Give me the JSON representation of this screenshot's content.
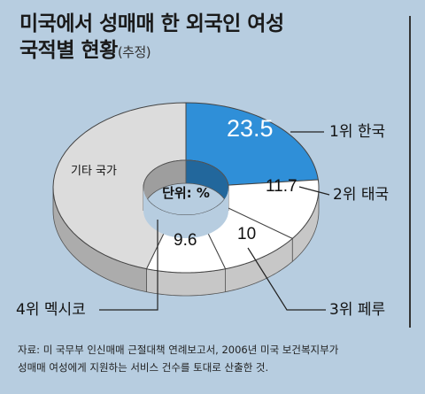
{
  "title": {
    "line1": "미국에서 성매매 한 외국인 여성",
    "line2": "국적별 현황",
    "line2_note": "(추정)"
  },
  "chart_data": {
    "type": "pie",
    "subtype": "donut-3d",
    "unit_label": "단위: %",
    "slices": [
      {
        "label": "1위 한국",
        "value": 23.5,
        "value_label": "23.5",
        "color": "#2f8fd8"
      },
      {
        "label": "2위 태국",
        "value": 11.7,
        "value_label": "11.7",
        "color": "#ffffff"
      },
      {
        "label": "3위 페루",
        "value": 10,
        "value_label": "10",
        "color": "#ffffff"
      },
      {
        "label": "4위 멕시코",
        "value": 9.6,
        "value_label": "9.6",
        "color": "#ffffff"
      },
      {
        "label": "기타 국가",
        "value": 45.2,
        "value_label": "",
        "color": "#dcdcdc"
      }
    ]
  },
  "source": {
    "line1": "자료: 미 국무부 인신매매 근절대책 연례보고서, 2006년 미국 보건복지부가",
    "line2": "성매매 여성에게 지원하는 서비스 건수를 토대로 산출한 것."
  }
}
